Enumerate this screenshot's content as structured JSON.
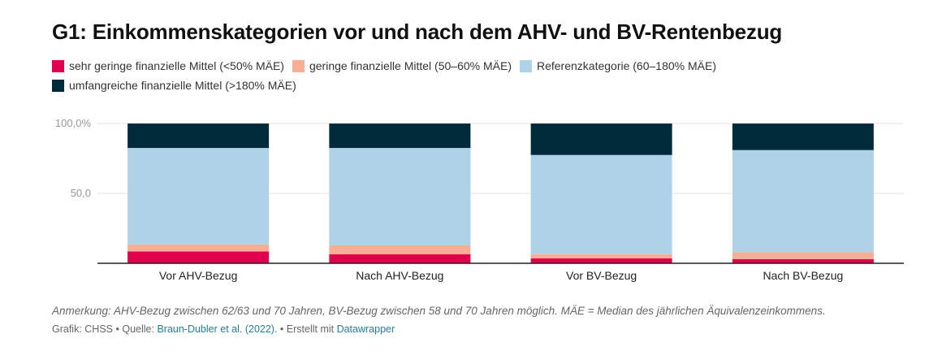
{
  "title": "G1: Einkommenskategorien vor und nach dem AHV- und BV-Rentenbezug",
  "note": "Anmerkung: AHV-Bezug zwischen 62/63 und 70 Jahren, BV-Bezug zwischen 58 und 70 Jahren möglich. MÄE = Median des jährlichen Äquivalenzeinkommens.",
  "footer": {
    "graphic_label": "Grafik: CHSS",
    "separator": " • ",
    "source_label": "Quelle: ",
    "source_link": "Braun-Dubler et al. (2022).",
    "created_label": "Erstellt mit ",
    "created_link": "Datawrapper"
  },
  "chart_data": {
    "type": "bar",
    "stacked": true,
    "categories": [
      "Vor AHV-Bezug",
      "Nach AHV-Bezug",
      "Vor BV-Bezug",
      "Nach BV-Bezug"
    ],
    "series": [
      {
        "name": "sehr geringe finanzielle Mittel (<50% MÄE)",
        "color": "#e0004d",
        "values": [
          8.5,
          6.5,
          3.5,
          3.0
        ]
      },
      {
        "name": "geringe finanzielle Mittel (50–60% MÄE)",
        "color": "#f7ae94",
        "values": [
          5.0,
          6.5,
          3.0,
          5.0
        ]
      },
      {
        "name": "Referenzkategorie (60–180% MÄE)",
        "color": "#afd2e8",
        "values": [
          69.0,
          69.5,
          71.0,
          73.0
        ]
      },
      {
        "name": "umfangreiche finanzielle Mittel (>180% MÄE)",
        "color": "#012a3a",
        "values": [
          17.5,
          17.5,
          22.5,
          19.0
        ]
      }
    ],
    "yticks": [
      {
        "value": 100,
        "label": "100,0%"
      },
      {
        "value": 50,
        "label": "50,0"
      }
    ],
    "ylim": [
      0,
      100
    ],
    "xlabel": "",
    "ylabel": "",
    "legend": "top-left"
  }
}
